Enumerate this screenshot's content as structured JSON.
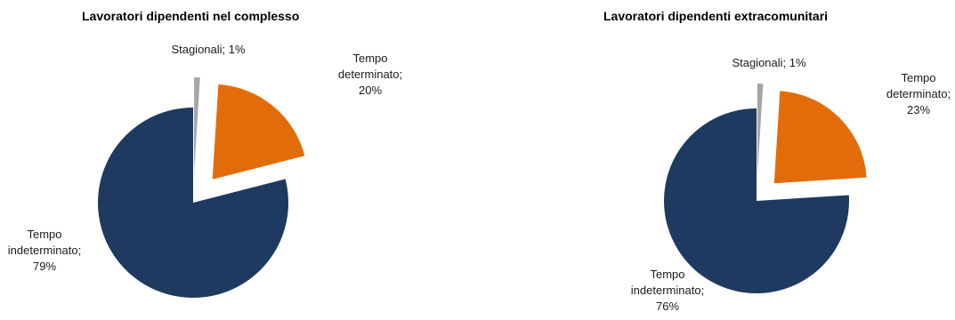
{
  "chart_data": [
    {
      "type": "pie",
      "title": "Lavoratori dipendenti nel complesso",
      "slices": [
        {
          "label": "Tempo indeterminato",
          "value": 79,
          "display": [
            "Tempo",
            "indeterminato;",
            "79%"
          ],
          "color": "#1f3a60",
          "exploded": false
        },
        {
          "label": "Stagionali",
          "value": 1,
          "display": [
            "Stagionali;  1%"
          ],
          "color": "#a6a6a6",
          "exploded": true
        },
        {
          "label": "Tempo determinato",
          "value": 20,
          "display": [
            "Tempo",
            "determinato;",
            "20%"
          ],
          "color": "#e36c0a",
          "exploded": true
        }
      ]
    },
    {
      "type": "pie",
      "title": "Lavoratori dipendenti extracomunitari",
      "slices": [
        {
          "label": "Tempo indeterminato",
          "value": 76,
          "display": [
            "Tempo",
            "indeterminato;",
            "76%"
          ],
          "color": "#1f3a60",
          "exploded": false
        },
        {
          "label": "Stagionali",
          "value": 1,
          "display": [
            "Stagionali;  1%"
          ],
          "color": "#a6a6a6",
          "exploded": true
        },
        {
          "label": "Tempo determinato",
          "value": 23,
          "display": [
            "Tempo",
            "determinato;",
            "23%"
          ],
          "color": "#e36c0a",
          "exploded": true
        }
      ]
    }
  ]
}
